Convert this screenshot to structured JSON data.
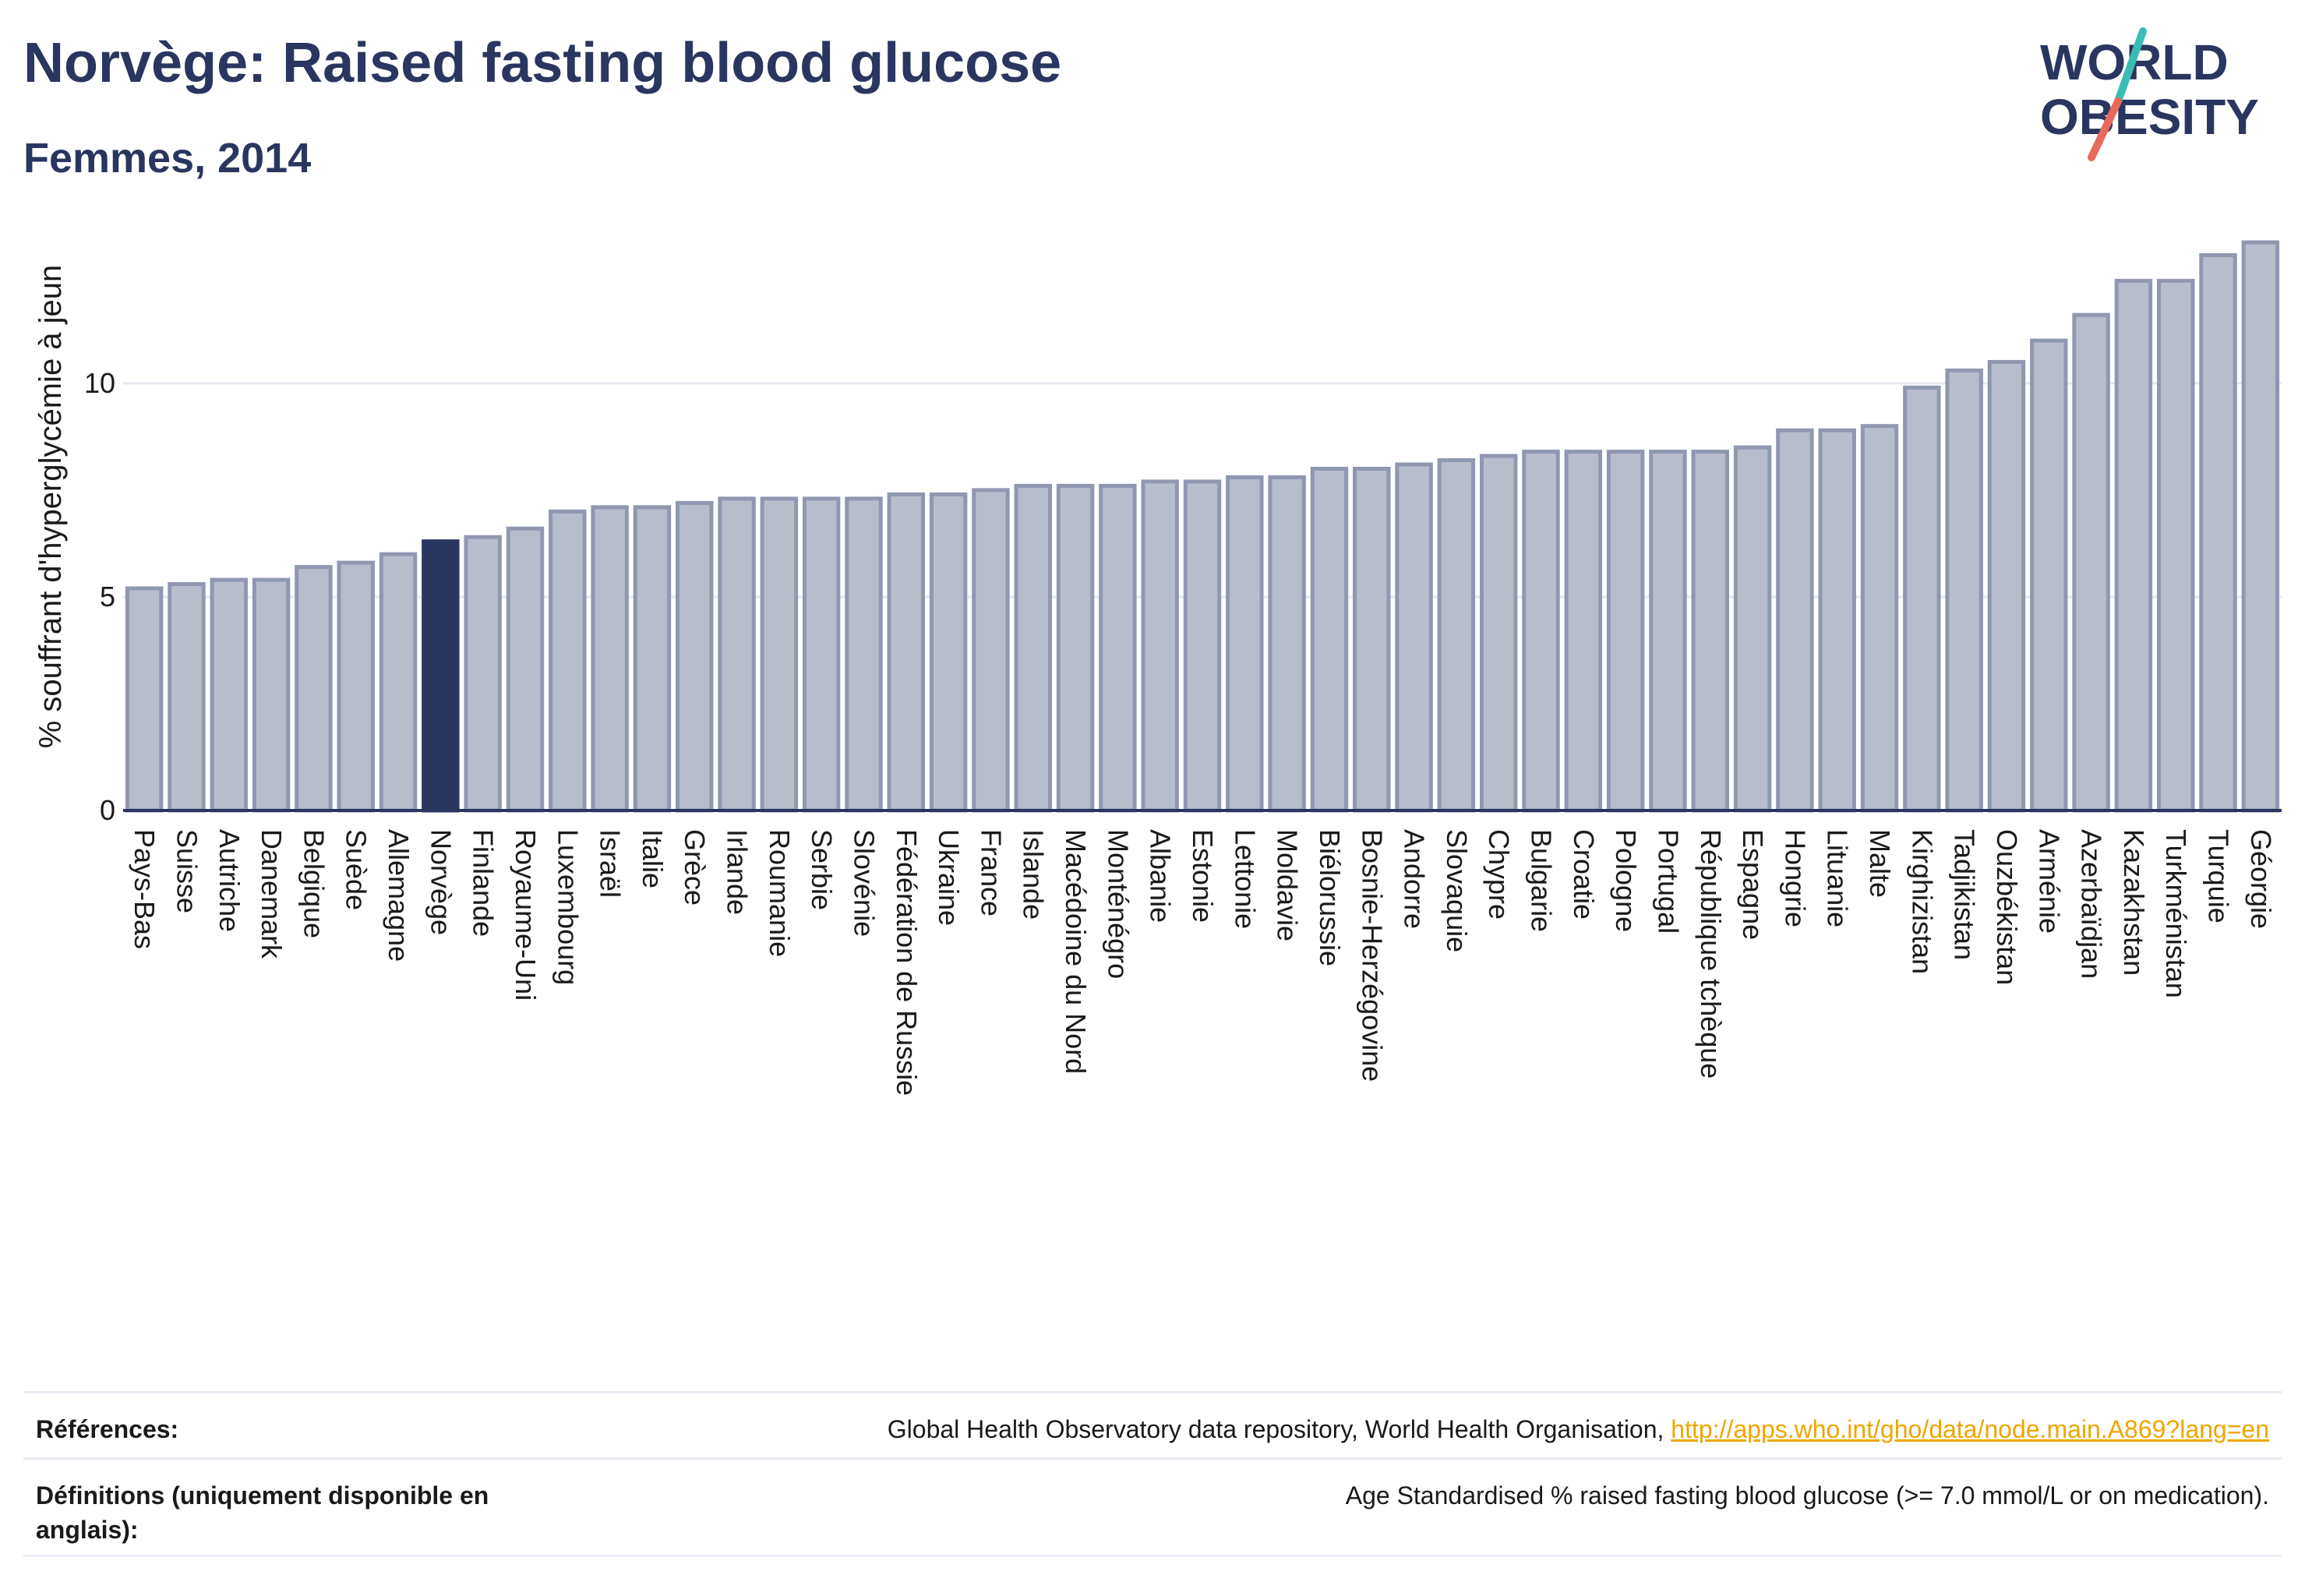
{
  "header": {
    "title": "Norvège: Raised fasting blood glucose",
    "subtitle": "Femmes, 2014"
  },
  "logo": {
    "line1": "WORLD",
    "line2": "OBESITY",
    "colors": {
      "text": "#2a3560",
      "slash_teal": "#3bbdb6",
      "slash_red": "#e86a5a"
    }
  },
  "chart_data": {
    "type": "bar",
    "ylabel": "% souffrant d'hyperglycémie à jeun",
    "ylim": [
      0,
      13.5
    ],
    "yticks": [
      0,
      5,
      10
    ],
    "grid": true,
    "highlight": "Norvège",
    "colors": {
      "bar": "#b8bdcc",
      "bar_edge": "#9097b0",
      "highlight": "#2a3560",
      "grid": "#e6e8ef",
      "axis": "#2a3560"
    },
    "categories": [
      "Pays-Bas",
      "Suisse",
      "Autriche",
      "Danemark",
      "Belgique",
      "Suède",
      "Allemagne",
      "Norvège",
      "Finlande",
      "Royaume-Uni",
      "Luxembourg",
      "Israël",
      "Italie",
      "Grèce",
      "Irlande",
      "Roumanie",
      "Serbie",
      "Slovénie",
      "Fédération de Russie",
      "Ukraine",
      "France",
      "Islande",
      "Macédoine du Nord",
      "Monténégro",
      "Albanie",
      "Estonie",
      "Lettonie",
      "Moldavie",
      "Biélorussie",
      "Bosnie-Herzégovine",
      "Andorre",
      "Slovaquie",
      "Chypre",
      "Bulgarie",
      "Croatie",
      "Pologne",
      "Portugal",
      "République tchèque",
      "Espagne",
      "Hongrie",
      "Lituanie",
      "Malte",
      "Kirghizistan",
      "Tadjikistan",
      "Ouzbékistan",
      "Arménie",
      "Azerbaïdjan",
      "Kazakhstan",
      "Turkménistan",
      "Turquie",
      "Géorgie"
    ],
    "values": [
      5.2,
      5.3,
      5.4,
      5.4,
      5.7,
      5.8,
      6.0,
      6.3,
      6.4,
      6.6,
      7.0,
      7.1,
      7.1,
      7.2,
      7.3,
      7.3,
      7.3,
      7.3,
      7.4,
      7.4,
      7.5,
      7.6,
      7.6,
      7.6,
      7.7,
      7.7,
      7.8,
      7.8,
      8.0,
      8.0,
      8.1,
      8.2,
      8.3,
      8.4,
      8.4,
      8.4,
      8.4,
      8.4,
      8.5,
      8.9,
      8.9,
      9.0,
      9.9,
      10.3,
      10.5,
      11.0,
      11.6,
      12.4,
      12.4,
      13.0,
      13.3
    ]
  },
  "references": {
    "refs_label": "Références:",
    "refs_text": "Global Health Observatory data repository, World Health Organisation, ",
    "refs_link": "http://apps.who.int/gho/data/node.main.A869?lang=en",
    "defs_label": "Définitions (uniquement disponible en anglais):",
    "defs_text": "Age Standardised % raised fasting blood glucose (>= 7.0 mmol/L or on medication)."
  }
}
